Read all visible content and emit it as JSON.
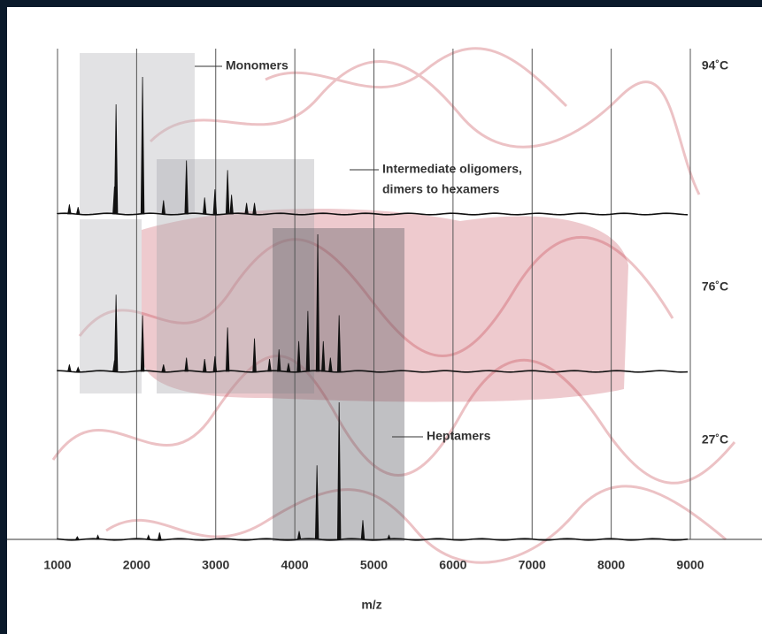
{
  "chart_data": {
    "type": "spectrum",
    "x_label": "m/z",
    "xlim": [
      1000,
      9000
    ],
    "xticks": [
      1000,
      2000,
      3000,
      4000,
      5000,
      6000,
      7000,
      8000,
      9000
    ],
    "grid": true,
    "series": [
      {
        "name": "94˚C",
        "color": "#111111",
        "x": [
          1150,
          1260,
          1720,
          1740,
          2075,
          2340,
          2630,
          2860,
          2990,
          3150,
          3200,
          3390,
          3490
        ],
        "values": [
          7,
          5,
          20,
          80,
          100,
          10,
          39,
          12,
          18,
          32,
          14,
          8,
          8
        ]
      },
      {
        "name": "76˚C",
        "color": "#111111",
        "x": [
          1150,
          1260,
          1720,
          1740,
          2075,
          2340,
          2630,
          2860,
          2990,
          3150,
          3490,
          3680,
          3800,
          3920,
          4050,
          4165,
          4290,
          4360,
          4450,
          4560
        ],
        "values": [
          5,
          3,
          8,
          56,
          41,
          5,
          10,
          9,
          11,
          32,
          24,
          9,
          16,
          6,
          22,
          44,
          100,
          22,
          10,
          41
        ]
      },
      {
        "name": "27˚C",
        "color": "#111111",
        "x": [
          1250,
          1510,
          2150,
          2290,
          4055,
          4280,
          4560,
          4860,
          5190
        ],
        "values": [
          2,
          3,
          3,
          5,
          6,
          54,
          100,
          14,
          3
        ]
      }
    ],
    "annotations": [
      {
        "lines": [
          "Monomers"
        ]
      },
      {
        "lines": [
          "Intermediate oligomers,",
          "dimers to hexamers"
        ]
      },
      {
        "lines": [
          "Heptamers"
        ]
      }
    ]
  }
}
